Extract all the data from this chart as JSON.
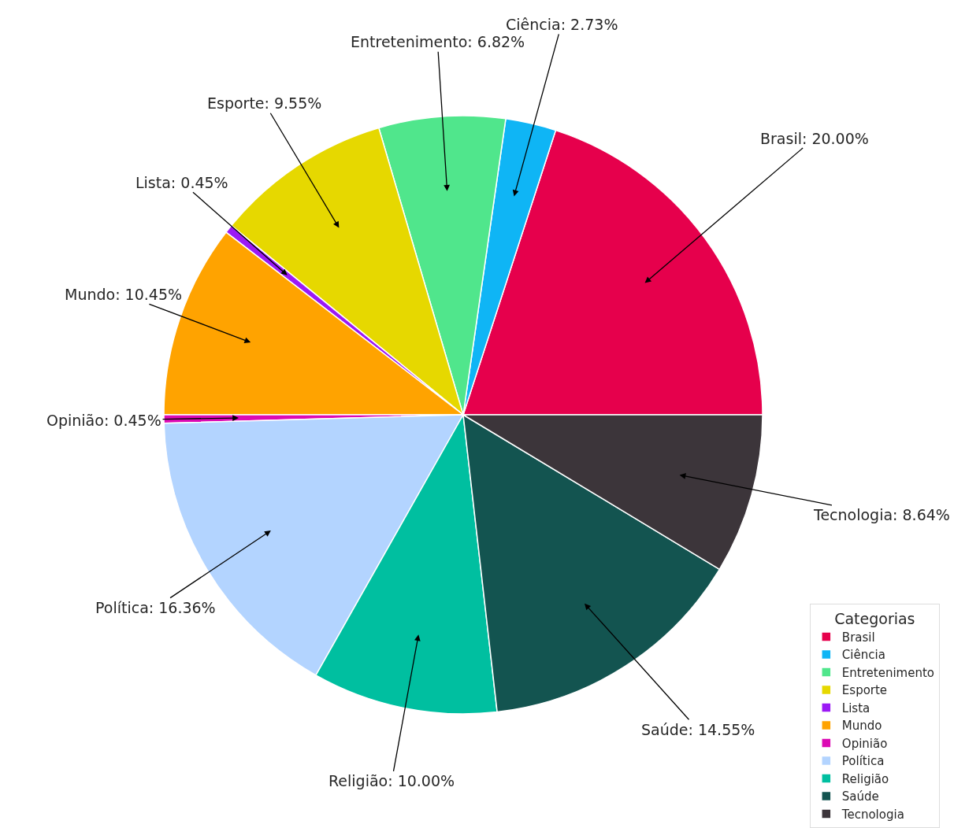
{
  "chart_data": {
    "type": "pie",
    "categories": [
      "Brasil",
      "Ciência",
      "Entretenimento",
      "Esporte",
      "Lista",
      "Mundo",
      "Opinião",
      "Política",
      "Religião",
      "Saúde",
      "Tecnologia"
    ],
    "values": [
      20.0,
      2.73,
      6.82,
      9.55,
      0.45,
      10.45,
      0.45,
      16.36,
      10.0,
      14.55,
      8.64
    ],
    "value_labels": [
      "Brasil: 20.00%",
      "Ciência: 2.73%",
      "Entretenimento: 6.82%",
      "Esporte: 9.55%",
      "Lista: 0.45%",
      "Mundo: 10.45%",
      "Opinião: 0.45%",
      "Política: 16.36%",
      "Religião: 10.00%",
      "Saúde: 14.55%",
      "Tecnologia: 8.64%"
    ],
    "colors": [
      "#e6004c",
      "#0fb5f5",
      "#50e68c",
      "#e6d800",
      "#9b19f5",
      "#ffa300",
      "#dc0ab4",
      "#b3d4ff",
      "#00bfa0",
      "#135450",
      "#3c353a"
    ],
    "legend": "bottom right",
    "legend_title": "Categorias"
  }
}
